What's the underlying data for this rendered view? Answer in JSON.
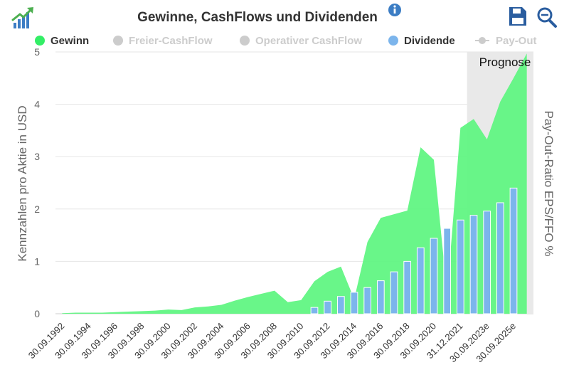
{
  "header": {
    "title": "Gewinne, CashFlows und Dividenden",
    "icons": [
      "trend-up-logo-icon",
      "info-icon",
      "save-icon",
      "zoom-out-icon"
    ]
  },
  "legend": [
    {
      "name": "Gewinn",
      "color": "#33ee66",
      "active": true,
      "marker": "dot"
    },
    {
      "name": "Freier-CashFlow",
      "color": "#cccccc",
      "active": false,
      "marker": "dot"
    },
    {
      "name": "Operativer CashFlow",
      "color": "#cccccc",
      "active": false,
      "marker": "dot"
    },
    {
      "name": "Dividende",
      "color": "#7cb5ec",
      "active": true,
      "marker": "dot"
    },
    {
      "name": "Pay-Out",
      "color": "#cccccc",
      "active": false,
      "marker": "line"
    }
  ],
  "colors": {
    "gewinn_fill": "#5cf57f",
    "dividende_fill": "#7cb5ec",
    "grid": "#e6e6e6",
    "prognose_band": "#e9e9e9"
  },
  "chart_data": {
    "type": "area",
    "title": "Gewinne, CashFlows und Dividenden",
    "ylabel": "Kennzahlen pro Aktie in USD",
    "y2label": "Pay-Out-Ratio EPS/FFO %",
    "ylim": [
      0,
      5
    ],
    "yticks": [
      "0",
      "1",
      "2",
      "3",
      "4",
      "5"
    ],
    "grid": true,
    "legend_position": "top",
    "prognose_label": "Prognose",
    "prognose_from": "31.12.2022",
    "categories": [
      "30.09.1992",
      "30.09.1993",
      "30.09.1994",
      "30.09.1995",
      "30.09.1996",
      "30.09.1997",
      "30.09.1998",
      "30.09.1999",
      "30.09.2000",
      "30.09.2001",
      "30.09.2002",
      "30.09.2003",
      "30.09.2004",
      "30.09.2005",
      "30.09.2006",
      "30.09.2007",
      "30.09.2008",
      "30.09.2009",
      "30.09.2010",
      "30.09.2011",
      "30.09.2012",
      "30.09.2013",
      "30.09.2014",
      "30.09.2015",
      "30.09.2016",
      "30.09.2017",
      "30.09.2018",
      "30.09.2019",
      "30.09.2020",
      "31.12.2020",
      "31.12.2021",
      "31.12.2022",
      "30.09.2023e",
      "30.09.2024e",
      "30.09.2025e",
      "30.09.2026e"
    ],
    "xtick_labels": [
      "30.09.1992",
      "30.09.1994",
      "30.09.1996",
      "30.09.1998",
      "30.09.2000",
      "30.09.2002",
      "30.09.2004",
      "30.09.2006",
      "30.09.2008",
      "30.09.2010",
      "30.09.2012",
      "30.09.2014",
      "30.09.2016",
      "30.09.2018",
      "30.09.2020",
      "31.12.2021",
      "30.09.2023e",
      "30.09.2025e"
    ],
    "series": [
      {
        "name": "Gewinn",
        "kind": "area",
        "values": [
          0.01,
          0.02,
          0.02,
          0.02,
          0.03,
          0.04,
          0.05,
          0.06,
          0.08,
          0.07,
          0.12,
          0.14,
          0.17,
          0.25,
          0.32,
          0.38,
          0.44,
          0.22,
          0.26,
          0.62,
          0.8,
          0.9,
          0.28,
          1.37,
          1.83,
          1.9,
          1.97,
          3.18,
          2.94,
          0.38,
          3.55,
          3.72,
          3.33,
          4.05,
          4.5,
          4.97
        ]
      },
      {
        "name": "Dividende",
        "kind": "bar",
        "values": [
          0,
          0,
          0,
          0,
          0,
          0,
          0,
          0,
          0,
          0,
          0,
          0,
          0,
          0,
          0,
          0,
          0,
          0,
          0,
          0.12,
          0.24,
          0.33,
          0.41,
          0.5,
          0.63,
          0.8,
          1.0,
          1.26,
          1.44,
          1.63,
          1.79,
          1.88,
          1.96,
          2.12,
          2.4,
          0
        ]
      }
    ]
  }
}
